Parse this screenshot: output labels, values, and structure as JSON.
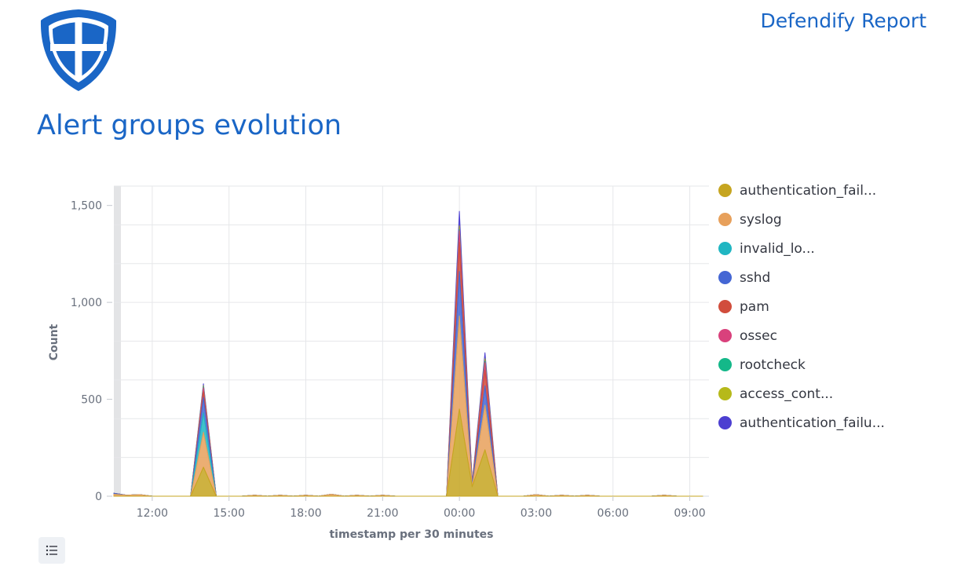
{
  "header": {
    "report_title": "Defendify Report",
    "logo_icon": "shield-icon",
    "brand_color": "#1a66c6"
  },
  "page_title": "Alert groups evolution",
  "legend_toggle_icon": "list-icon",
  "chart_data": {
    "type": "area",
    "stacked": true,
    "xlabel": "timestamp per 30 minutes",
    "ylabel": "Count",
    "ylim": [
      0,
      1600
    ],
    "yticks": [
      0,
      500,
      1000,
      1500
    ],
    "ytick_labels": [
      "0",
      "500",
      "1,000",
      "1,500"
    ],
    "xlim": [
      10.5,
      33.75
    ],
    "xticks": [
      12,
      15,
      18,
      21,
      24,
      27,
      30,
      33
    ],
    "xtick_labels": [
      "12:00",
      "15:00",
      "18:00",
      "21:00",
      "00:00",
      "03:00",
      "06:00",
      "09:00"
    ],
    "grid": true,
    "legend_position": "right",
    "x": [
      10.5,
      11.0,
      11.5,
      12.0,
      12.5,
      13.0,
      13.5,
      14.0,
      14.5,
      15.0,
      15.5,
      16.0,
      16.5,
      17.0,
      17.5,
      18.0,
      18.5,
      19.0,
      19.5,
      20.0,
      20.5,
      21.0,
      21.5,
      22.0,
      22.5,
      23.0,
      23.5,
      24.0,
      24.5,
      25.0,
      25.5,
      26.0,
      26.5,
      27.0,
      27.5,
      28.0,
      28.5,
      29.0,
      29.5,
      30.0,
      30.5,
      31.0,
      31.5,
      32.0,
      32.5,
      33.0,
      33.5
    ],
    "series": [
      {
        "name": "authentication_fail...",
        "color": "#c6a520",
        "values": [
          0,
          0,
          0,
          0,
          0,
          0,
          0,
          150,
          0,
          0,
          0,
          0,
          0,
          0,
          0,
          0,
          0,
          0,
          0,
          0,
          0,
          0,
          0,
          0,
          0,
          0,
          0,
          450,
          50,
          240,
          0,
          0,
          0,
          0,
          0,
          0,
          0,
          0,
          0,
          0,
          0,
          0,
          0,
          0,
          0,
          0,
          0
        ]
      },
      {
        "name": "syslog",
        "color": "#e7a05b",
        "values": [
          10,
          5,
          8,
          0,
          0,
          0,
          0,
          180,
          0,
          0,
          0,
          5,
          0,
          5,
          0,
          5,
          0,
          10,
          0,
          5,
          0,
          5,
          0,
          0,
          0,
          0,
          0,
          480,
          0,
          230,
          0,
          0,
          0,
          8,
          0,
          5,
          0,
          5,
          0,
          0,
          0,
          0,
          0,
          5,
          0,
          0,
          0
        ]
      },
      {
        "name": "invalid_lo...",
        "color": "#20b6c2",
        "values": [
          0,
          0,
          0,
          0,
          0,
          0,
          0,
          100,
          0,
          0,
          0,
          0,
          0,
          0,
          0,
          0,
          0,
          0,
          0,
          0,
          0,
          0,
          0,
          0,
          0,
          0,
          0,
          0,
          0,
          0,
          0,
          0,
          0,
          0,
          0,
          0,
          0,
          0,
          0,
          0,
          0,
          0,
          0,
          0,
          0,
          0,
          0
        ]
      },
      {
        "name": "sshd",
        "color": "#4466d4",
        "values": [
          5,
          0,
          0,
          0,
          0,
          0,
          0,
          80,
          0,
          0,
          0,
          0,
          0,
          0,
          0,
          0,
          0,
          0,
          0,
          0,
          0,
          0,
          0,
          0,
          0,
          0,
          0,
          230,
          10,
          100,
          0,
          0,
          0,
          0,
          0,
          0,
          0,
          0,
          0,
          0,
          0,
          0,
          0,
          0,
          0,
          0,
          0
        ]
      },
      {
        "name": "pam",
        "color": "#d14d3c",
        "values": [
          0,
          0,
          0,
          0,
          0,
          0,
          0,
          30,
          0,
          0,
          0,
          0,
          0,
          0,
          0,
          0,
          0,
          0,
          0,
          0,
          0,
          0,
          0,
          0,
          0,
          0,
          0,
          150,
          5,
          80,
          0,
          0,
          0,
          0,
          0,
          0,
          0,
          0,
          0,
          0,
          0,
          0,
          0,
          0,
          0,
          0,
          0
        ]
      },
      {
        "name": "ossec",
        "color": "#d9417c",
        "values": [
          0,
          0,
          0,
          0,
          0,
          0,
          0,
          20,
          0,
          0,
          0,
          0,
          0,
          0,
          0,
          0,
          0,
          0,
          0,
          0,
          0,
          0,
          0,
          0,
          0,
          0,
          0,
          60,
          0,
          40,
          0,
          0,
          0,
          0,
          0,
          0,
          0,
          0,
          0,
          0,
          0,
          0,
          0,
          0,
          0,
          0,
          0
        ]
      },
      {
        "name": "rootcheck",
        "color": "#14b889",
        "values": [
          0,
          0,
          0,
          0,
          0,
          0,
          0,
          5,
          0,
          0,
          0,
          0,
          0,
          0,
          0,
          0,
          0,
          0,
          0,
          0,
          0,
          0,
          0,
          0,
          0,
          0,
          0,
          5,
          0,
          5,
          0,
          0,
          0,
          0,
          0,
          0,
          0,
          0,
          0,
          0,
          0,
          0,
          0,
          0,
          0,
          0,
          0
        ]
      },
      {
        "name": "access_cont...",
        "color": "#b6b91a",
        "values": [
          0,
          0,
          0,
          0,
          0,
          0,
          0,
          5,
          0,
          0,
          0,
          0,
          0,
          0,
          0,
          0,
          0,
          0,
          0,
          0,
          0,
          0,
          0,
          0,
          0,
          0,
          0,
          20,
          0,
          15,
          0,
          0,
          0,
          0,
          0,
          0,
          0,
          0,
          0,
          0,
          0,
          0,
          0,
          0,
          0,
          0,
          0
        ]
      },
      {
        "name": "authentication_failu...",
        "color": "#4c3fd1",
        "values": [
          0,
          0,
          0,
          0,
          0,
          0,
          0,
          10,
          0,
          0,
          0,
          0,
          0,
          0,
          0,
          0,
          0,
          0,
          0,
          0,
          0,
          0,
          0,
          0,
          0,
          0,
          0,
          75,
          5,
          30,
          0,
          0,
          0,
          0,
          0,
          0,
          0,
          0,
          0,
          0,
          0,
          0,
          0,
          0,
          0,
          0,
          0
        ]
      }
    ]
  }
}
